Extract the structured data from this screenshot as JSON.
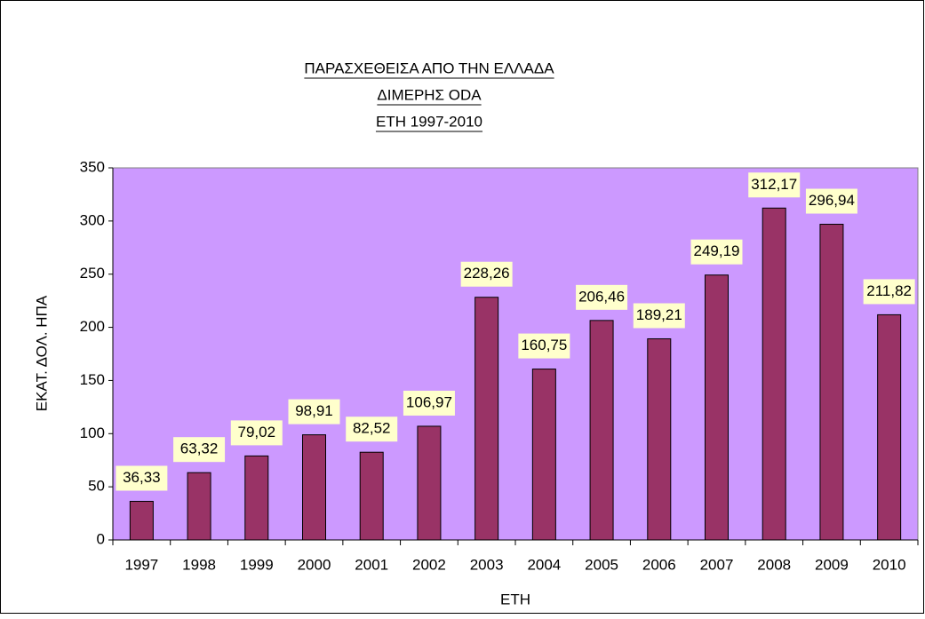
{
  "chart_data": {
    "type": "bar",
    "title": [
      "ΠΑΡΑΣΧΕΘΕΙΣΑ ΑΠΟ ΤΗΝ ΕΛΛΑΔΑ",
      "ΔΙΜΕΡΗΣ ODA",
      "ΕΤΗ 1997-2010"
    ],
    "x_label": "ΕΤΗ",
    "y_label": "ΕΚΑΤ. ΔΟΛ. ΗΠΑ",
    "categories": [
      "1997",
      "1998",
      "1999",
      "2000",
      "2001",
      "2002",
      "2003",
      "2004",
      "2005",
      "2006",
      "2007",
      "2008",
      "2009",
      "2010"
    ],
    "values": [
      36.33,
      63.32,
      79.02,
      98.91,
      82.52,
      106.97,
      228.26,
      160.75,
      206.46,
      189.21,
      249.19,
      312.17,
      296.94,
      211.82
    ],
    "value_labels": [
      "36,33",
      "63,32",
      "79,02",
      "98,91",
      "82,52",
      "106,97",
      "228,26",
      "160,75",
      "206,46",
      "189,21",
      "249,19",
      "312,17",
      "296,94",
      "211,82"
    ],
    "color": "#993366",
    "plot_background": "#cc99ff",
    "label_background": "#ffffcc",
    "ylim": [
      0,
      350
    ],
    "yticks": [
      0,
      50,
      100,
      150,
      200,
      250,
      300,
      350
    ]
  }
}
